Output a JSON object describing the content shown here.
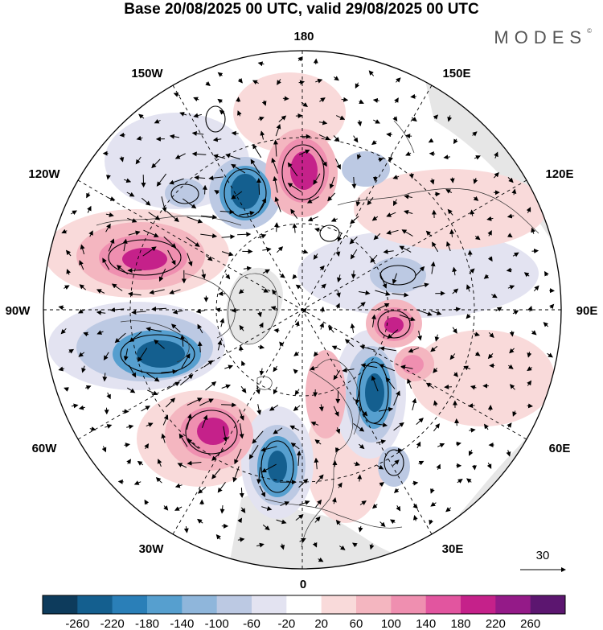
{
  "title": "Base 20/08/2025 00 UTC, valid 29/08/2025 00 UTC",
  "brand": "MODES",
  "brand_mark": "©",
  "longitude_labels": {
    "n180": "180",
    "w150": "150W",
    "e150": "150E",
    "w120": "120W",
    "e120": "120E",
    "w90": "90W",
    "e90": "90E",
    "w60": "60W",
    "e60": "60E",
    "w30": "30W",
    "e30": "30E",
    "s0": "0"
  },
  "vector_reference": "30",
  "colorbar": {
    "levels": [
      "-260",
      "-220",
      "-180",
      "-140",
      "-100",
      "-60",
      "-20",
      "20",
      "60",
      "100",
      "140",
      "180",
      "220",
      "260"
    ],
    "colors": [
      "#0d3b5c",
      "#145f8f",
      "#2a7fb8",
      "#569fcf",
      "#8fb6db",
      "#bcc9e3",
      "#e3e3f1",
      "#ffffff",
      "#f9dada",
      "#f4b6c0",
      "#ef8fb0",
      "#e2559f",
      "#c5218a",
      "#941a88",
      "#5c1670"
    ]
  },
  "anomaly_colors": {
    "neg_strong": "#145f8f",
    "neg_mid": "#569fcf",
    "neg_light": "#bcc9e3",
    "neg_faint": "#e3e3f1",
    "pos_faint": "#f9dada",
    "pos_light": "#f4b6c0",
    "pos_mid": "#ef8fb0",
    "pos_strong": "#c5218a",
    "land_shade": "#e6e6e6"
  }
}
